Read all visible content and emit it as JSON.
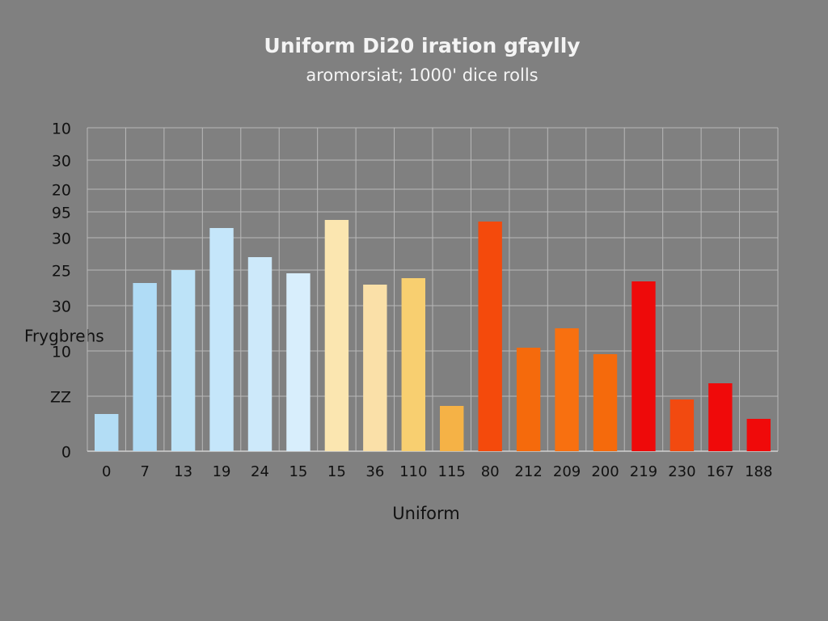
{
  "chart_data": {
    "type": "bar",
    "title": "Uniform Di20 iration gfaylly",
    "subtitle": "aromorsiat; 1000' dice rolls",
    "x_label": "Uniform",
    "y_label": "Frygbrehs",
    "categories": [
      "0",
      "7",
      "13",
      "19",
      "24",
      "15",
      "15",
      "36",
      "110",
      "115",
      "80",
      "212",
      "209",
      "200",
      "219",
      "230",
      "167",
      "188"
    ],
    "values": [
      11.5,
      52,
      56,
      69,
      60,
      55,
      71.5,
      51.5,
      53.5,
      14,
      71,
      32,
      38,
      30,
      52.5,
      16,
      21,
      10
    ],
    "colors": [
      "#b3ddf5",
      "#b0dcf6",
      "#bde3f8",
      "#c5e6fa",
      "#cde9fa",
      "#d8eefc",
      "#fbe6b0",
      "#fae0a8",
      "#f8cf70",
      "#f5b246",
      "#f44a0c",
      "#f56a0c",
      "#f87010",
      "#f56a0c",
      "#ee0a0a",
      "#f24a10",
      "#f00a0a",
      "#f00a0a"
    ],
    "ylim": [
      0,
      100
    ],
    "yticks": [
      {
        "value": 100,
        "label": "10"
      },
      {
        "value": 90,
        "label": "30"
      },
      {
        "value": 81,
        "label": "20"
      },
      {
        "value": 74,
        "label": "95"
      },
      {
        "value": 66,
        "label": "30"
      },
      {
        "value": 56,
        "label": "25"
      },
      {
        "value": 45,
        "label": "30"
      },
      {
        "value": 31,
        "label": "10"
      },
      {
        "value": 17,
        "label": "ZZ"
      },
      0
    ],
    "grid": true
  }
}
